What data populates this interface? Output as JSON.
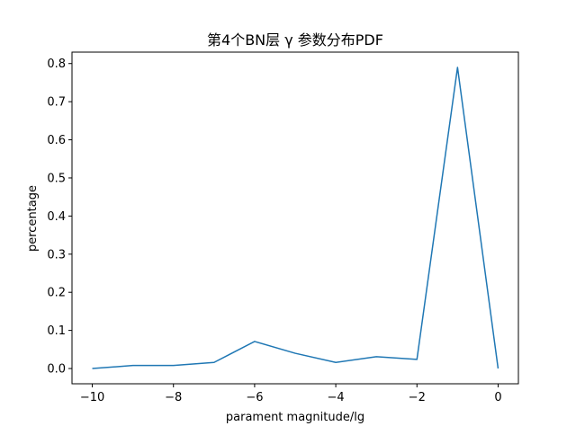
{
  "chart_data": {
    "type": "line",
    "title": "第4个BN层 γ 参数分布PDF",
    "xlabel": "parament magnitude/lg",
    "ylabel": "percentage",
    "xlim": [
      -10.5,
      0.5
    ],
    "ylim": [
      -0.04,
      0.83
    ],
    "x_ticks": [
      -10,
      -8,
      -6,
      -4,
      -2,
      0
    ],
    "x_tick_labels": [
      "−10",
      "−8",
      "−6",
      "−4",
      "−2",
      "0"
    ],
    "y_ticks": [
      0.0,
      0.1,
      0.2,
      0.3,
      0.4,
      0.5,
      0.6,
      0.7,
      0.8
    ],
    "y_tick_labels": [
      "0.0",
      "0.1",
      "0.2",
      "0.3",
      "0.4",
      "0.5",
      "0.6",
      "0.7",
      "0.8"
    ],
    "grid": false,
    "series": [
      {
        "color": "#1f77b4",
        "x": [
          -10,
          -9,
          -8,
          -7,
          -6,
          -5,
          -4,
          -3,
          -2,
          -1,
          0
        ],
        "y": [
          0.0,
          0.008,
          0.008,
          0.016,
          0.071,
          0.04,
          0.016,
          0.031,
          0.024,
          0.79,
          0.0
        ]
      }
    ]
  }
}
